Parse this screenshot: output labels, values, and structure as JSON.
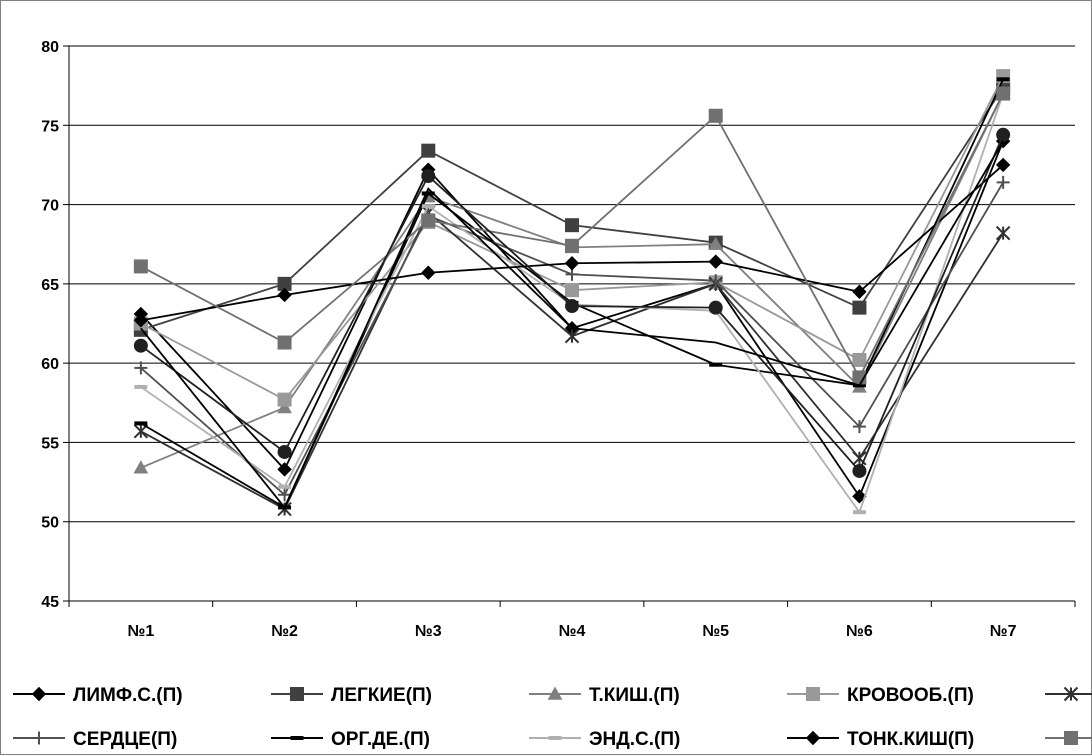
{
  "chart_data": {
    "type": "line",
    "title": "",
    "xlabel": "",
    "ylabel": "",
    "ylim": [
      45,
      80
    ],
    "y_ticks": [
      "45",
      "50",
      "55",
      "60",
      "65",
      "70",
      "75",
      "80"
    ],
    "grid": true,
    "legend_position": "bottom",
    "categories": [
      "№1",
      "№2",
      "№3",
      "№4",
      "№5",
      "№6",
      "№7"
    ],
    "series": [
      {
        "name": "ЛИМФ.С.(П)",
        "marker": "diamond",
        "color": "#000000",
        "values": [
          63.1,
          53.3,
          72.2,
          62.2,
          65.0,
          51.6,
          74.0
        ]
      },
      {
        "name": "ЛЕГКИЕ(П)",
        "marker": "square",
        "color": "#404040",
        "values": [
          62.1,
          65.0,
          73.4,
          68.7,
          67.6,
          63.5,
          77.4
        ]
      },
      {
        "name": "Т.КИШ.(П)",
        "marker": "triangle",
        "color": "#808080",
        "values": [
          53.4,
          57.2,
          70.5,
          67.3,
          67.5,
          58.5,
          77.0
        ]
      },
      {
        "name": "КРОВООБ.(П)",
        "marker": "square",
        "color": "#999999",
        "values": [
          62.5,
          57.7,
          68.9,
          64.6,
          65.1,
          60.2,
          78.1
        ]
      },
      {
        "name": "",
        "marker": "star",
        "color": "#303030",
        "values": [
          55.7,
          50.8,
          69.5,
          61.7,
          65.0,
          54.0,
          68.2
        ]
      },
      {
        "name": "СЕРДЦЕ(П)",
        "marker": "plus",
        "color": "#505050",
        "values": [
          59.7,
          51.7,
          69.3,
          65.6,
          65.2,
          56.0,
          71.4
        ]
      },
      {
        "name": "ОРГ.ДЕ.(П)",
        "marker": "dash",
        "color": "#000000",
        "values": [
          56.2,
          50.9,
          70.7,
          63.8,
          59.9,
          58.6,
          77.9
        ]
      },
      {
        "name": "ЭНД.С.(П)",
        "marker": "dash",
        "color": "#b0b0b0",
        "values": [
          58.5,
          52.2,
          69.9,
          63.7,
          63.3,
          50.6,
          77.0
        ]
      },
      {
        "name": "ТОНК.КИШ(П)",
        "marker": "diamond",
        "color": "#000000",
        "values": [
          62.7,
          64.3,
          65.7,
          66.3,
          66.4,
          64.5,
          72.5
        ]
      },
      {
        "name": "",
        "marker": "square",
        "color": "#707070",
        "values": [
          66.1,
          61.3,
          69.0,
          67.4,
          75.6,
          59.1,
          77.0
        ]
      },
      {
        "name": "",
        "marker": "circle",
        "color": "#202020",
        "values": [
          61.1,
          54.4,
          71.8,
          63.6,
          63.5,
          53.2,
          74.4
        ]
      },
      {
        "name": "",
        "marker": "none",
        "color": "#000000",
        "values": [
          62.2,
          50.9,
          71.0,
          62.2,
          61.3,
          58.6,
          74.0
        ]
      }
    ],
    "legend_items": [
      {
        "label": "ЛИМФ.С.(П)",
        "marker": "diamond",
        "color": "#000000",
        "row": 0
      },
      {
        "label": "ЛЕГКИЕ(П)",
        "marker": "square",
        "color": "#404040",
        "row": 0
      },
      {
        "label": "Т.КИШ.(П)",
        "marker": "triangle",
        "color": "#808080",
        "row": 0
      },
      {
        "label": "КРОВООБ.(П)",
        "marker": "square",
        "color": "#999999",
        "row": 0
      },
      {
        "label": "",
        "marker": "star",
        "color": "#303030",
        "row": 0
      },
      {
        "label": "СЕРДЦЕ(П)",
        "marker": "plus",
        "color": "#505050",
        "row": 1
      },
      {
        "label": "ОРГ.ДЕ.(П)",
        "marker": "dash",
        "color": "#000000",
        "row": 1
      },
      {
        "label": "ЭНД.С.(П)",
        "marker": "dash",
        "color": "#b0b0b0",
        "row": 1
      },
      {
        "label": "ТОНК.КИШ(П)",
        "marker": "diamond",
        "color": "#000000",
        "row": 1
      },
      {
        "label": "",
        "marker": "square",
        "color": "#707070",
        "row": 1
      }
    ]
  }
}
